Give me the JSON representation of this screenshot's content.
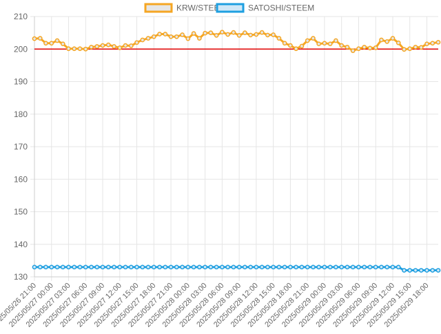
{
  "chart_data": {
    "type": "line",
    "title": "",
    "xlabel": "",
    "ylabel": "",
    "ylim": [
      130,
      210
    ],
    "y_ticks": [
      130,
      140,
      150,
      160,
      170,
      180,
      190,
      200,
      210
    ],
    "grid": true,
    "legend_position": "top-center",
    "reference_line": {
      "value": 200,
      "color": "#e00000"
    },
    "x": [
      "2025/05/26 21:00",
      "2025/05/26 22:00",
      "2025/05/26 23:00",
      "2025/05/27 00:00",
      "2025/05/27 01:00",
      "2025/05/27 02:00",
      "2025/05/27 03:00",
      "2025/05/27 04:00",
      "2025/05/27 05:00",
      "2025/05/27 06:00",
      "2025/05/27 07:00",
      "2025/05/27 08:00",
      "2025/05/27 09:00",
      "2025/05/27 10:00",
      "2025/05/27 11:00",
      "2025/05/27 12:00",
      "2025/05/27 13:00",
      "2025/05/27 14:00",
      "2025/05/27 15:00",
      "2025/05/27 16:00",
      "2025/05/27 17:00",
      "2025/05/27 18:00",
      "2025/05/27 19:00",
      "2025/05/27 20:00",
      "2025/05/27 21:00",
      "2025/05/27 22:00",
      "2025/05/27 23:00",
      "2025/05/28 00:00",
      "2025/05/28 01:00",
      "2025/05/28 02:00",
      "2025/05/28 03:00",
      "2025/05/28 04:00",
      "2025/05/28 05:00",
      "2025/05/28 06:00",
      "2025/05/28 07:00",
      "2025/05/28 08:00",
      "2025/05/28 09:00",
      "2025/05/28 10:00",
      "2025/05/28 11:00",
      "2025/05/28 12:00",
      "2025/05/28 13:00",
      "2025/05/28 14:00",
      "2025/05/28 15:00",
      "2025/05/28 16:00",
      "2025/05/28 17:00",
      "2025/05/28 18:00",
      "2025/05/28 19:00",
      "2025/05/28 20:00",
      "2025/05/28 21:00",
      "2025/05/28 22:00",
      "2025/05/28 23:00",
      "2025/05/29 00:00",
      "2025/05/29 01:00",
      "2025/05/29 02:00",
      "2025/05/29 03:00",
      "2025/05/29 04:00",
      "2025/05/29 05:00",
      "2025/05/29 06:00",
      "2025/05/29 07:00",
      "2025/05/29 08:00",
      "2025/05/29 09:00",
      "2025/05/29 10:00",
      "2025/05/29 11:00",
      "2025/05/29 12:00",
      "2025/05/29 13:00",
      "2025/05/29 14:00",
      "2025/05/29 15:00",
      "2025/05/29 16:00",
      "2025/05/29 17:00",
      "2025/05/29 18:00",
      "2025/05/29 19:00",
      "2025/05/29 20:00"
    ],
    "x_tick_labels": [
      "2025/05/26 21:00",
      "2025/05/27 00:00",
      "2025/05/27 03:00",
      "2025/05/27 06:00",
      "2025/05/27 09:00",
      "2025/05/27 12:00",
      "2025/05/27 15:00",
      "2025/05/27 18:00",
      "2025/05/27 21:00",
      "2025/05/28 00:00",
      "2025/05/28 03:00",
      "2025/05/28 06:00",
      "2025/05/28 09:00",
      "2025/05/28 12:00",
      "2025/05/28 15:00",
      "2025/05/28 18:00",
      "2025/05/28 21:00",
      "2025/05/29 00:00",
      "2025/05/29 03:00",
      "2025/05/29 06:00",
      "2025/05/29 09:00",
      "2025/05/29 12:00",
      "2025/05/29 15:00",
      "2025/05/29 18:00"
    ],
    "series": [
      {
        "name": "KRW/STEEM",
        "color": "#f5a623",
        "fill": "#e6e6e6",
        "values": [
          203.2,
          203.3,
          201.8,
          201.8,
          202.6,
          201.6,
          200.1,
          200.1,
          200.1,
          200.0,
          200.6,
          200.8,
          201.1,
          201.3,
          200.8,
          200.4,
          201.1,
          201.0,
          202.0,
          202.8,
          203.3,
          203.8,
          204.6,
          204.6,
          203.8,
          203.8,
          204.4,
          203.2,
          204.8,
          203.3,
          204.9,
          205.0,
          204.2,
          205.2,
          204.5,
          205.1,
          204.2,
          205.0,
          204.3,
          204.5,
          205.1,
          204.3,
          204.4,
          203.3,
          201.8,
          201.1,
          200.1,
          200.9,
          202.6,
          203.3,
          201.6,
          201.8,
          201.6,
          202.6,
          201.1,
          200.6,
          199.5,
          200.1,
          200.6,
          200.3,
          200.4,
          202.8,
          202.3,
          203.3,
          201.9,
          199.9,
          200.1,
          200.6,
          200.5,
          201.6,
          201.8,
          202.1
        ]
      },
      {
        "name": "SATOSHI/STEEM",
        "color": "#1e9fe0",
        "fill": "#cfe7f7",
        "values": [
          133,
          133,
          133,
          133,
          133,
          133,
          133,
          133,
          133,
          133,
          133,
          133,
          133,
          133,
          133,
          133,
          133,
          133,
          133,
          133,
          133,
          133,
          133,
          133,
          133,
          133,
          133,
          133,
          133,
          133,
          133,
          133,
          133,
          133,
          133,
          133,
          133,
          133,
          133,
          133,
          133,
          133,
          133,
          133,
          133,
          133,
          133,
          133,
          133,
          133,
          133,
          133,
          133,
          133,
          133,
          133,
          133,
          133,
          133,
          133,
          133,
          133,
          133,
          133,
          133,
          132,
          132,
          132,
          132,
          132,
          132,
          132
        ]
      }
    ]
  }
}
